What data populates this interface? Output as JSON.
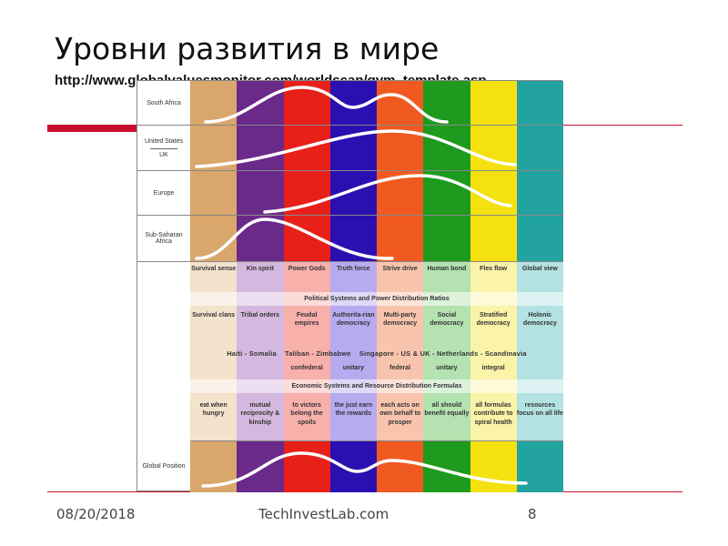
{
  "slide": {
    "title": "Уровни развития в мире",
    "url": "http://www.globalvaluesmonitor.com/worldscan/gvm_template.asp"
  },
  "footer": {
    "date": "08/20/2018",
    "site": "TechInvestLab.com",
    "page": "8"
  },
  "figure": {
    "colors": [
      "#d9a66b",
      "#6a2a8a",
      "#e8201a",
      "#2a10b0",
      "#f05a20",
      "#1e9a1e",
      "#f5e010",
      "#22a3a0"
    ],
    "light_colors": [
      "#f3e2cc",
      "#d4b8df",
      "#f8b0ab",
      "#b8aaef",
      "#f9c4ad",
      "#b4e2b0",
      "#faf3a8",
      "#b4e2e2"
    ],
    "rows": [
      {
        "label": "South Africa"
      },
      {
        "label": "United States",
        "label2": "UK"
      },
      {
        "label": "Europe"
      },
      {
        "label": "Sub-Saharan Africa"
      }
    ],
    "memes": [
      "Survival sense",
      "Kin spirit",
      "Power Gods",
      "Truth force",
      "Strive drive",
      "Human bond",
      "Flex flow",
      "Global view"
    ],
    "political_header": "Political Systems and Power Distribution Ratios",
    "political": [
      "Survival clans",
      "Tribal orders",
      "Feudal empires",
      "Authorita-rian democracy",
      "Multi-party democracy",
      "Social democracy",
      "Stratified democracy",
      "Holonic democracy"
    ],
    "examples": "Haiti - Somalia    Taliban - Zimbabwe    Singapore - US & UK - Netherlands - Scandinavia",
    "structures": [
      "",
      "",
      "confederal",
      "unitary",
      "federal",
      "unitary",
      "integral",
      ""
    ],
    "economic_header": "Economic Systems and Resource Distribution Formulas",
    "economic": [
      "eat when hungry",
      "mutual reciprocity & kinship",
      "to victors belong the spoils",
      "the just earn the rewards",
      "each acts on own behalf to prosper",
      "all should benefit equally",
      "all formulas contribute to spiral health",
      "resources focus on all life"
    ],
    "global_label": "Global Position"
  }
}
